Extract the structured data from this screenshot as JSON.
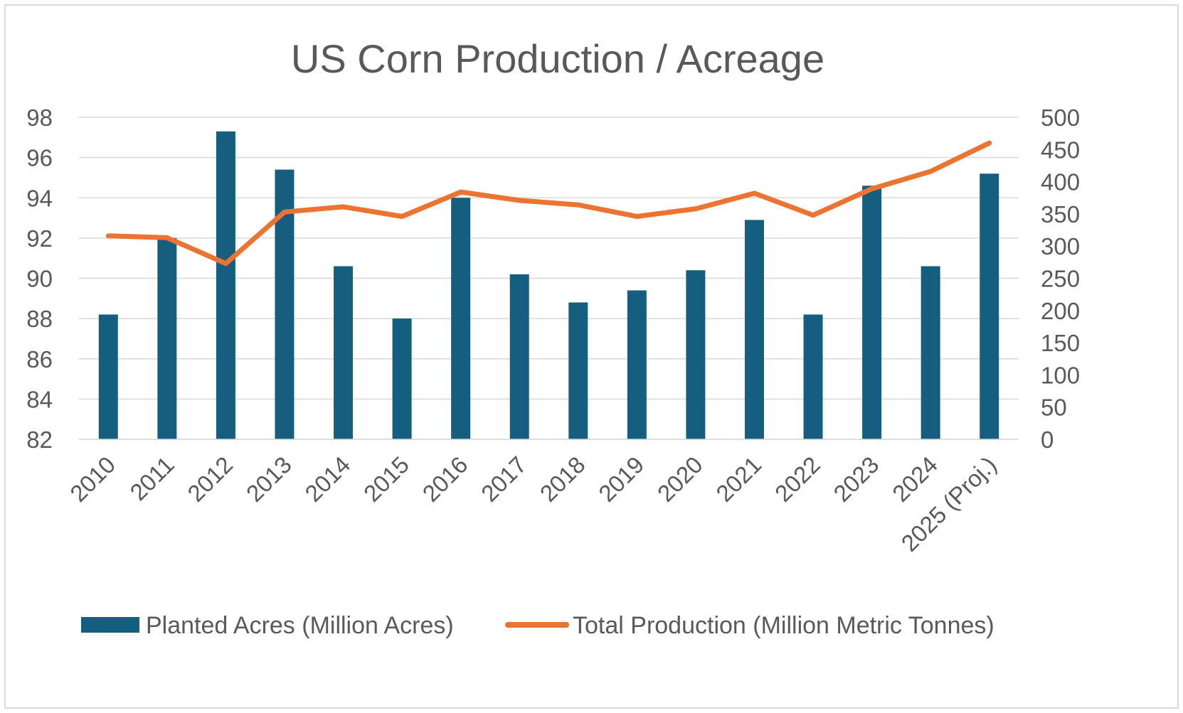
{
  "chart_data": {
    "type": "bar",
    "title": "US Corn Production / Acreage",
    "categories": [
      "2010",
      "2011",
      "2012",
      "2013",
      "2014",
      "2015",
      "2016",
      "2017",
      "2018",
      "2019",
      "2020",
      "2021",
      "2022",
      "2023",
      "2024",
      "2025 (Proj.)"
    ],
    "series": [
      {
        "name": "Planted Acres (Million Acres)",
        "type": "bar",
        "axis": "left",
        "color": "#165e80",
        "values": [
          88.2,
          92.0,
          97.3,
          95.4,
          90.6,
          88.0,
          94.0,
          90.2,
          88.8,
          89.4,
          90.4,
          92.9,
          88.2,
          94.6,
          90.6,
          95.2
        ]
      },
      {
        "name": "Total Production (Million Metric Tonnes)",
        "type": "line",
        "axis": "right",
        "color": "#ed7331",
        "values": [
          316,
          313,
          273,
          353,
          361,
          346,
          384,
          371,
          364,
          346,
          358,
          382,
          348,
          389,
          416,
          460
        ]
      }
    ],
    "y_left": {
      "min": 82,
      "max": 98,
      "step": 2,
      "ticks": [
        "82",
        "84",
        "86",
        "88",
        "90",
        "92",
        "94",
        "96",
        "98"
      ]
    },
    "y_right": {
      "min": 0,
      "max": 500,
      "step": 50,
      "ticks": [
        "0",
        "50",
        "100",
        "150",
        "200",
        "250",
        "300",
        "350",
        "400",
        "450",
        "500"
      ]
    },
    "grid": true,
    "legend_position": "bottom"
  }
}
